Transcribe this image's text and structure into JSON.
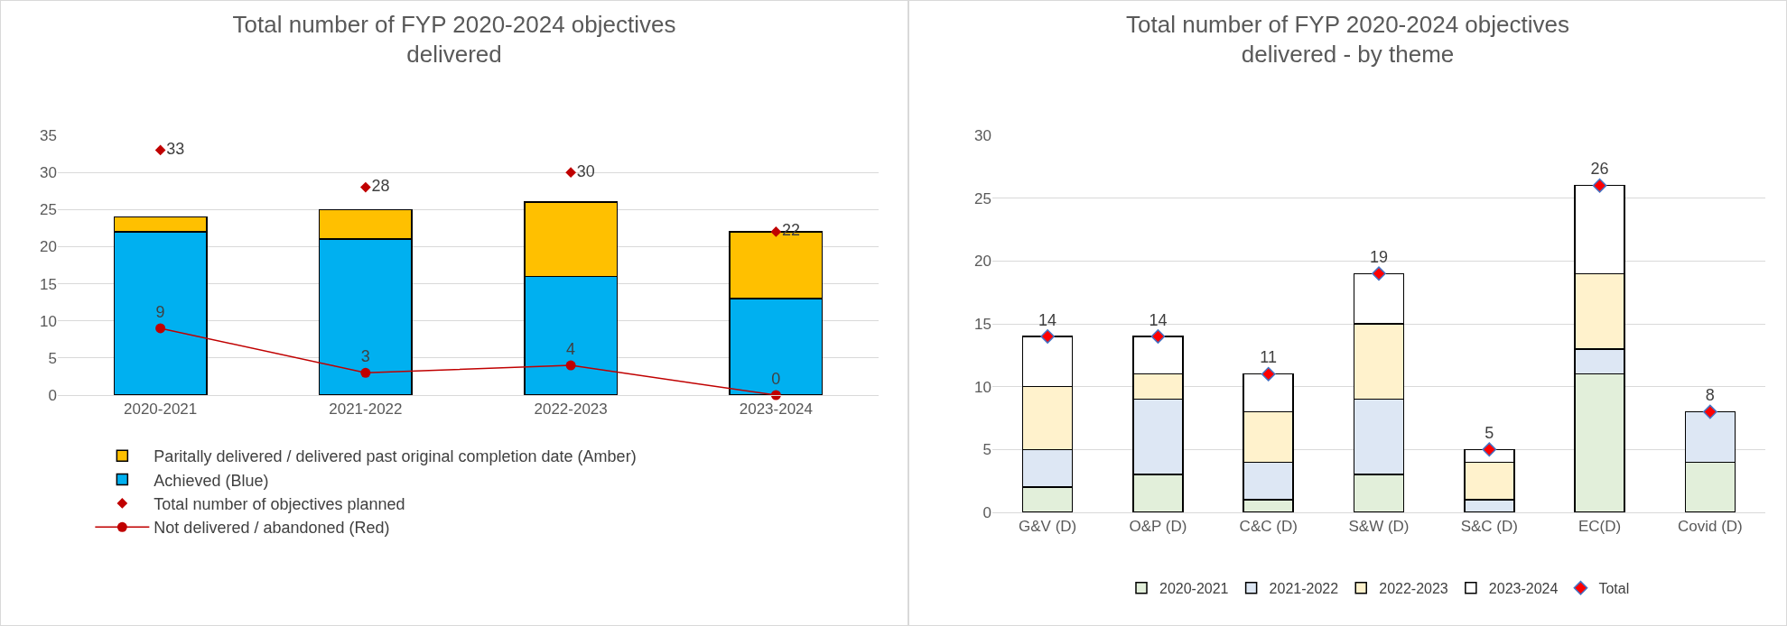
{
  "chart_data": [
    {
      "type": "bar",
      "title": "Total number of FYP 2020-2024 objectives delivered",
      "stacked": true,
      "categories": [
        "2020-2021",
        "2021-2022",
        "2022-2023",
        "2023-2024"
      ],
      "series": [
        {
          "name": "Achieved (Blue)",
          "color": "#00b0f0",
          "values": [
            22,
            21,
            16,
            13
          ]
        },
        {
          "name": "Paritally delivered / delivered past original completion date (Amber)",
          "color": "#ffc000",
          "values": [
            2,
            4,
            10,
            9
          ]
        },
        {
          "name": "Total number of objectives planned",
          "type": "scatter",
          "marker": "diamond",
          "color": "#c00000",
          "values": [
            33,
            28,
            30,
            22
          ],
          "data_labels": true
        },
        {
          "name": "Not delivered / abandoned (Red)",
          "type": "line",
          "marker": "circle",
          "color": "#c00000",
          "values": [
            9,
            3,
            4,
            0
          ],
          "data_labels": true
        }
      ],
      "ylim": [
        0,
        35
      ],
      "yticks": [
        0,
        5,
        10,
        15,
        20,
        25,
        30,
        35
      ],
      "grid": "y",
      "legend": "bottom left"
    },
    {
      "type": "bar",
      "title": "Total number of FYP 2020-2024 objectives delivered - by theme",
      "stacked": true,
      "categories": [
        "G&V (D)",
        "O&P (D)",
        "C&C (D)",
        "S&W (D)",
        "S&C (D)",
        "EC(D)",
        "Covid (D)"
      ],
      "series": [
        {
          "name": "2020-2021",
          "color": "#e2efda",
          "values": [
            2,
            3,
            1,
            3,
            0,
            11,
            4
          ]
        },
        {
          "name": "2021-2022",
          "color": "#dde7f4",
          "values": [
            3,
            6,
            3,
            6,
            1,
            2,
            4
          ]
        },
        {
          "name": "2022-2023",
          "color": "#fff2cc",
          "values": [
            5,
            2,
            4,
            6,
            3,
            6,
            0
          ]
        },
        {
          "name": "2023-2024",
          "color": "#ffffff",
          "values": [
            4,
            3,
            3,
            4,
            1,
            7,
            0
          ]
        },
        {
          "name": "Total",
          "type": "scatter",
          "marker": "diamond",
          "color": "#ff0000",
          "values": [
            14,
            14,
            11,
            19,
            5,
            26,
            8
          ],
          "data_labels": true
        }
      ],
      "ylim": [
        0,
        30
      ],
      "yticks": [
        0,
        5,
        10,
        15,
        20,
        25,
        30
      ],
      "grid": "y",
      "legend": "bottom"
    }
  ]
}
